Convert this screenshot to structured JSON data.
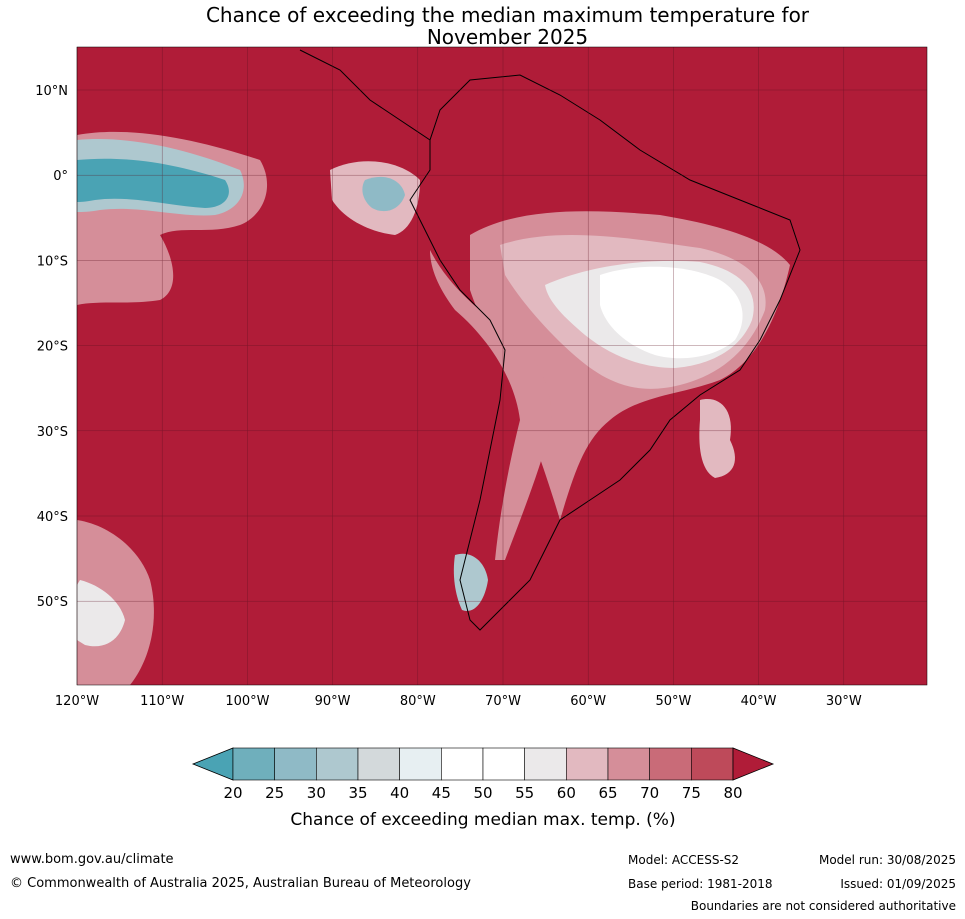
{
  "title": {
    "line1": "Chance of exceeding the median maximum temperature for",
    "line2": "November 2025"
  },
  "map": {
    "background_color": "#b01c38",
    "lat_labels": [
      "10°N",
      "0°",
      "10°S",
      "20°S",
      "30°S",
      "40°S",
      "50°S"
    ],
    "lon_labels": [
      "120°W",
      "110°W",
      "100°W",
      "90°W",
      "80°W",
      "70°W",
      "60°W",
      "50°W",
      "40°W",
      "30°W"
    ]
  },
  "colorbar": {
    "ticks": [
      "20",
      "25",
      "30",
      "35",
      "40",
      "45",
      "50",
      "55",
      "60",
      "65",
      "70",
      "75",
      "80"
    ],
    "colors": [
      "#4aa3b4",
      "#6fafbc",
      "#8fbac6",
      "#aec8cf",
      "#d3d9db",
      "#e7eff2",
      "#ffffff",
      "#ffffff",
      "#ebe9ea",
      "#e2b9c0",
      "#d58e99",
      "#c96b78",
      "#be4a5a",
      "#b01c38"
    ],
    "label": "Chance of exceeding median max. temp. (%)"
  },
  "footer": {
    "website": "www.bom.gov.au/climate",
    "copyright": "© Commonwealth of Australia 2025, Australian Bureau of Meteorology",
    "model": "Model: ACCESS-S2",
    "base_period": "Base period: 1981-2018",
    "model_run": "Model run: 30/08/2025",
    "issued": "Issued: 01/09/2025",
    "disclaimer": "Boundaries are not considered authoritative"
  }
}
